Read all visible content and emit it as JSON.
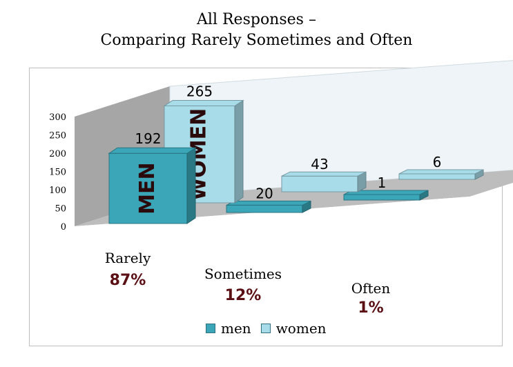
{
  "chart_data": {
    "type": "bar",
    "title": [
      "All Responses –",
      "Comparing Rarely Sometimes and Often"
    ],
    "categories": [
      "Rarely",
      "Sometimes",
      "Often"
    ],
    "category_percentages": [
      "87%",
      "12%",
      "1%"
    ],
    "series": [
      {
        "name": "men",
        "values": [
          192,
          20,
          1
        ],
        "color": "#3aa6b8",
        "bar_text": "MEN"
      },
      {
        "name": "women",
        "values": [
          265,
          43,
          6
        ],
        "color": "#a8dce9",
        "bar_text": "WOMEN"
      }
    ],
    "data_labels": [
      [
        "192",
        "20",
        "1"
      ],
      [
        "265",
        "43",
        "6"
      ]
    ],
    "yticks": [
      "0",
      "50",
      "100",
      "150",
      "200",
      "250",
      "300"
    ],
    "ylim": [
      0,
      300
    ],
    "legend_position": "bottom",
    "style": "3d-column",
    "grid": false
  }
}
